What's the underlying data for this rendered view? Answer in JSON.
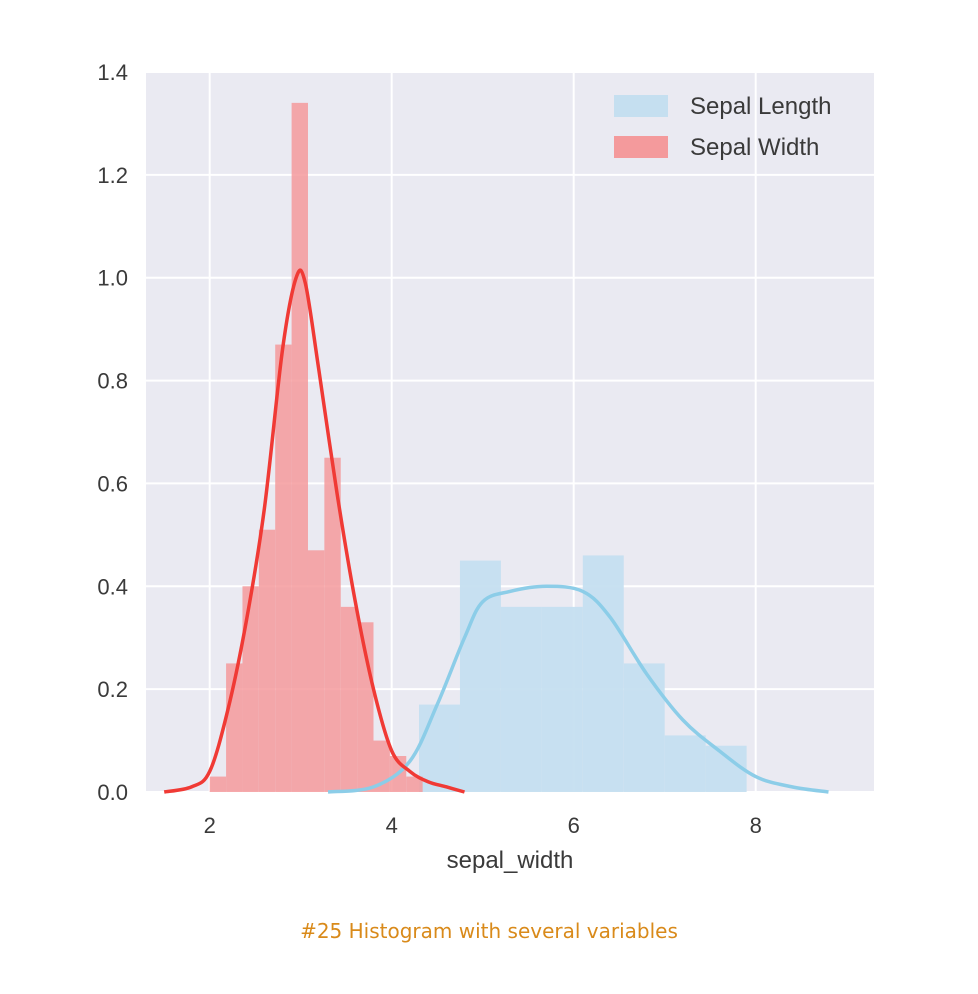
{
  "caption": "#25 Histogram with several variables",
  "chart_data": {
    "type": "histogram",
    "xlabel": "sepal_width",
    "ylabel": "",
    "xlim": [
      1.3,
      9.3
    ],
    "ylim": [
      0,
      1.4
    ],
    "xticks": [
      2,
      4,
      6,
      8
    ],
    "yticks": [
      0.0,
      0.2,
      0.4,
      0.6,
      0.8,
      1.0,
      1.2,
      1.4
    ],
    "ytick_labels": [
      "0.0",
      "0.2",
      "0.4",
      "0.6",
      "0.8",
      "1.0",
      "1.2",
      "1.4"
    ],
    "grid": true,
    "legend_position": "top-right",
    "series": [
      {
        "name": "Sepal Length",
        "color": "#c5dff0",
        "kde_color": "#8ccde8",
        "bin_edges": [
          4.3,
          4.75,
          5.2,
          5.65,
          6.1,
          6.55,
          7.0,
          7.45,
          7.9
        ],
        "values": [
          0.17,
          0.45,
          0.36,
          0.36,
          0.46,
          0.25,
          0.11,
          0.09
        ],
        "kde": [
          [
            3.3,
            0.0
          ],
          [
            3.8,
            0.01
          ],
          [
            4.2,
            0.06
          ],
          [
            4.5,
            0.17
          ],
          [
            4.8,
            0.3
          ],
          [
            5.0,
            0.37
          ],
          [
            5.3,
            0.39
          ],
          [
            5.7,
            0.4
          ],
          [
            6.1,
            0.39
          ],
          [
            6.4,
            0.34
          ],
          [
            6.8,
            0.23
          ],
          [
            7.2,
            0.14
          ],
          [
            7.6,
            0.08
          ],
          [
            8.0,
            0.03
          ],
          [
            8.4,
            0.01
          ],
          [
            8.8,
            0.0
          ]
        ]
      },
      {
        "name": "Sepal Width",
        "color": "#f49a9c",
        "kde_color": "#f03a35",
        "bin_edges": [
          2.0,
          2.18,
          2.36,
          2.54,
          2.72,
          2.9,
          3.08,
          3.26,
          3.44,
          3.62,
          3.8,
          3.98,
          4.16,
          4.34
        ],
        "values": [
          0.03,
          0.25,
          0.4,
          0.51,
          0.87,
          1.34,
          0.47,
          0.65,
          0.36,
          0.33,
          0.1,
          0.07,
          0.03
        ],
        "kde": [
          [
            1.5,
            0.0
          ],
          [
            1.8,
            0.01
          ],
          [
            2.0,
            0.04
          ],
          [
            2.2,
            0.16
          ],
          [
            2.4,
            0.33
          ],
          [
            2.6,
            0.55
          ],
          [
            2.8,
            0.86
          ],
          [
            2.95,
            1.0
          ],
          [
            3.05,
            0.99
          ],
          [
            3.2,
            0.82
          ],
          [
            3.4,
            0.58
          ],
          [
            3.6,
            0.37
          ],
          [
            3.8,
            0.2
          ],
          [
            4.0,
            0.08
          ],
          [
            4.2,
            0.04
          ],
          [
            4.4,
            0.02
          ],
          [
            4.6,
            0.01
          ],
          [
            4.8,
            0.0
          ]
        ]
      }
    ]
  }
}
